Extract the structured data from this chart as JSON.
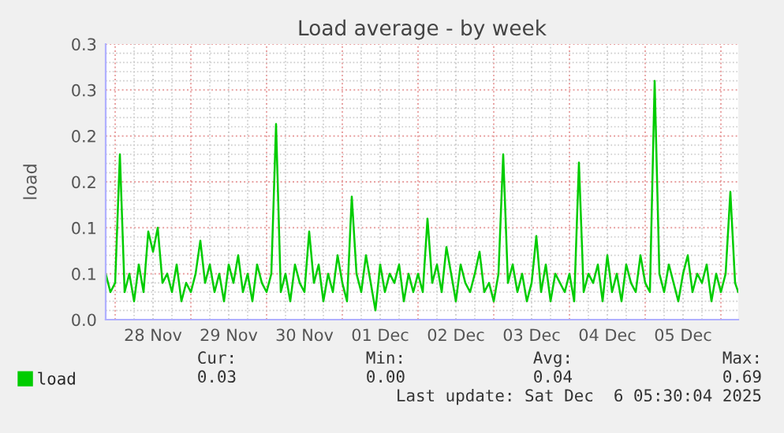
{
  "chart_data": {
    "type": "line",
    "title": "Load average - by week",
    "ylabel": "load",
    "x": [
      "2025-11-27T21:00",
      "2025-11-27T22:30",
      "2025-11-28T00:00",
      "2025-11-28T01:30",
      "2025-11-28T03:00",
      "2025-11-28T04:30",
      "2025-11-28T06:00",
      "2025-11-28T07:30",
      "2025-11-28T09:00",
      "2025-11-28T10:30",
      "2025-11-28T12:00",
      "2025-11-28T13:30",
      "2025-11-28T15:00",
      "2025-11-28T16:30",
      "2025-11-28T18:00",
      "2025-11-28T19:30",
      "2025-11-28T21:00",
      "2025-11-28T22:30",
      "2025-11-29T00:00",
      "2025-11-29T01:30",
      "2025-11-29T03:00",
      "2025-11-29T04:30",
      "2025-11-29T06:00",
      "2025-11-29T07:30",
      "2025-11-29T09:00",
      "2025-11-29T10:30",
      "2025-11-29T12:00",
      "2025-11-29T13:30",
      "2025-11-29T15:00",
      "2025-11-29T16:30",
      "2025-11-29T18:00",
      "2025-11-29T19:30",
      "2025-11-29T21:00",
      "2025-11-29T22:30",
      "2025-11-30T00:00",
      "2025-11-30T01:30",
      "2025-11-30T03:00",
      "2025-11-30T04:30",
      "2025-11-30T06:00",
      "2025-11-30T07:30",
      "2025-11-30T09:00",
      "2025-11-30T10:30",
      "2025-11-30T12:00",
      "2025-11-30T13:30",
      "2025-11-30T15:00",
      "2025-11-30T16:30",
      "2025-11-30T18:00",
      "2025-11-30T19:30",
      "2025-11-30T21:00",
      "2025-11-30T22:30",
      "2025-12-01T00:00",
      "2025-12-01T01:30",
      "2025-12-01T03:00",
      "2025-12-01T04:30",
      "2025-12-01T06:00",
      "2025-12-01T07:30",
      "2025-12-01T09:00",
      "2025-12-01T10:30",
      "2025-12-01T12:00",
      "2025-12-01T13:30",
      "2025-12-01T15:00",
      "2025-12-01T16:30",
      "2025-12-01T18:00",
      "2025-12-01T19:30",
      "2025-12-01T21:00",
      "2025-12-01T22:30",
      "2025-12-02T00:00",
      "2025-12-02T01:30",
      "2025-12-02T03:00",
      "2025-12-02T04:30",
      "2025-12-02T06:00",
      "2025-12-02T07:30",
      "2025-12-02T09:00",
      "2025-12-02T10:30",
      "2025-12-02T12:00",
      "2025-12-02T13:30",
      "2025-12-02T15:00",
      "2025-12-02T16:30",
      "2025-12-02T18:00",
      "2025-12-02T19:30",
      "2025-12-02T21:00",
      "2025-12-02T22:30",
      "2025-12-03T00:00",
      "2025-12-03T01:30",
      "2025-12-03T03:00",
      "2025-12-03T04:30",
      "2025-12-03T06:00",
      "2025-12-03T07:30",
      "2025-12-03T09:00",
      "2025-12-03T10:30",
      "2025-12-03T12:00",
      "2025-12-03T13:30",
      "2025-12-03T15:00",
      "2025-12-03T16:30",
      "2025-12-03T18:00",
      "2025-12-03T19:30",
      "2025-12-03T21:00",
      "2025-12-03T22:30",
      "2025-12-04T00:00",
      "2025-12-04T01:30",
      "2025-12-04T03:00",
      "2025-12-04T04:30",
      "2025-12-04T06:00",
      "2025-12-04T07:30",
      "2025-12-04T09:00",
      "2025-12-04T10:30",
      "2025-12-04T12:00",
      "2025-12-04T13:30",
      "2025-12-04T15:00",
      "2025-12-04T16:30",
      "2025-12-04T18:00",
      "2025-12-04T19:30",
      "2025-12-04T21:00",
      "2025-12-04T22:30",
      "2025-12-05T00:00",
      "2025-12-05T01:30",
      "2025-12-05T03:00",
      "2025-12-05T04:30",
      "2025-12-05T06:00",
      "2025-12-05T07:30",
      "2025-12-05T09:00",
      "2025-12-05T10:30",
      "2025-12-05T12:00",
      "2025-12-05T13:30",
      "2025-12-05T15:00",
      "2025-12-05T16:30",
      "2025-12-05T18:00",
      "2025-12-05T19:30",
      "2025-12-05T21:00",
      "2025-12-05T22:30",
      "2025-12-06T00:00",
      "2025-12-06T01:30",
      "2025-12-06T03:00",
      "2025-12-06T04:30",
      "2025-12-06T05:30"
    ],
    "series": [
      {
        "name": "load",
        "color": "#00cc00",
        "values": [
          0.05,
          0.03,
          0.04,
          0.18,
          0.03,
          0.05,
          0.02,
          0.06,
          0.03,
          0.096,
          0.074,
          0.1,
          0.04,
          0.05,
          0.03,
          0.06,
          0.02,
          0.04,
          0.03,
          0.05,
          0.086,
          0.04,
          0.06,
          0.03,
          0.05,
          0.02,
          0.06,
          0.04,
          0.07,
          0.03,
          0.05,
          0.02,
          0.06,
          0.04,
          0.03,
          0.05,
          0.213,
          0.03,
          0.05,
          0.02,
          0.06,
          0.04,
          0.03,
          0.096,
          0.04,
          0.06,
          0.02,
          0.05,
          0.03,
          0.07,
          0.04,
          0.02,
          0.134,
          0.05,
          0.03,
          0.07,
          0.04,
          0.01,
          0.06,
          0.03,
          0.05,
          0.04,
          0.06,
          0.02,
          0.05,
          0.03,
          0.05,
          0.03,
          0.11,
          0.04,
          0.06,
          0.03,
          0.079,
          0.05,
          0.02,
          0.06,
          0.04,
          0.03,
          0.05,
          0.074,
          0.03,
          0.04,
          0.02,
          0.05,
          0.18,
          0.04,
          0.06,
          0.03,
          0.05,
          0.02,
          0.04,
          0.091,
          0.03,
          0.06,
          0.02,
          0.05,
          0.04,
          0.03,
          0.05,
          0.02,
          0.171,
          0.03,
          0.05,
          0.04,
          0.06,
          0.02,
          0.07,
          0.03,
          0.05,
          0.02,
          0.06,
          0.04,
          0.03,
          0.07,
          0.04,
          0.03,
          0.26,
          0.05,
          0.03,
          0.06,
          0.04,
          0.02,
          0.05,
          0.07,
          0.03,
          0.05,
          0.04,
          0.06,
          0.02,
          0.05,
          0.03,
          0.05,
          0.139,
          0.04,
          0.03
        ]
      }
    ],
    "xlim": [
      "2025-11-27T21:00",
      "2025-12-06T05:30"
    ],
    "xticks": [
      {
        "value": "2025-11-28T00:00",
        "label": null
      },
      {
        "value": "2025-11-28T12:00",
        "label": "28 Nov"
      },
      {
        "value": "2025-11-29T00:00",
        "label": null
      },
      {
        "value": "2025-11-29T12:00",
        "label": "29 Nov"
      },
      {
        "value": "2025-11-30T00:00",
        "label": null
      },
      {
        "value": "2025-11-30T12:00",
        "label": "30 Nov"
      },
      {
        "value": "2025-12-01T00:00",
        "label": null
      },
      {
        "value": "2025-12-01T12:00",
        "label": "01 Dec"
      },
      {
        "value": "2025-12-02T00:00",
        "label": null
      },
      {
        "value": "2025-12-02T12:00",
        "label": "02 Dec"
      },
      {
        "value": "2025-12-03T00:00",
        "label": null
      },
      {
        "value": "2025-12-03T12:00",
        "label": "03 Dec"
      },
      {
        "value": "2025-12-04T00:00",
        "label": null
      },
      {
        "value": "2025-12-04T12:00",
        "label": "04 Dec"
      },
      {
        "value": "2025-12-05T00:00",
        "label": null
      },
      {
        "value": "2025-12-05T12:00",
        "label": "05 Dec"
      },
      {
        "value": "2025-12-06T00:00",
        "label": null
      }
    ],
    "ylim": [
      0,
      0.3
    ],
    "yticks": [
      {
        "value": 0,
        "label": "0.0"
      },
      {
        "value": 0.05,
        "label": "0.1"
      },
      0.1,
      {
        "value": 0.15,
        "label": "0.2"
      },
      0.2,
      {
        "value": 0.25,
        "label": "0.3"
      },
      0.3
    ],
    "grid": true,
    "legend": "bottom left",
    "marker": "none",
    "line_style": "solid",
    "annotations": [
      "Cur:",
      "Min:",
      "Avg:",
      "Max:",
      "0.03",
      "0.00",
      "0.04",
      "0.69",
      "Last update: Sat Dec  6 05:30:04 2025"
    ]
  }
}
